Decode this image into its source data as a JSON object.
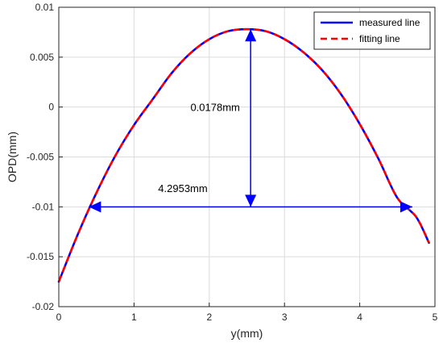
{
  "chart_data": {
    "type": "line",
    "title": "",
    "xlabel": "y(mm)",
    "ylabel": "OPD(mm)",
    "xlim": [
      0,
      5
    ],
    "ylim": [
      -0.02,
      0.01
    ],
    "xticks": [
      0,
      1,
      2,
      3,
      4,
      5
    ],
    "yticks": [
      -0.02,
      -0.015,
      -0.01,
      -0.005,
      0,
      0.005,
      0.01
    ],
    "xtick_labels": [
      "0",
      "1",
      "2",
      "3",
      "4",
      "5"
    ],
    "ytick_labels": [
      "-0.02",
      "-0.015",
      "-0.01",
      "-0.005",
      "0",
      "0.005",
      "0.01"
    ],
    "grid": true,
    "legend_position": "top-right",
    "series": [
      {
        "name": "measured line",
        "color": "#0000ff",
        "style": "solid",
        "x": [
          0,
          0.25,
          0.5,
          0.75,
          1.0,
          1.25,
          1.5,
          1.75,
          2.0,
          2.25,
          2.5,
          2.75,
          3.0,
          3.25,
          3.5,
          3.75,
          4.0,
          4.25,
          4.5,
          4.75,
          4.92
        ],
        "y": [
          -0.0175,
          -0.0128,
          -0.0086,
          -0.0049,
          -0.0018,
          0.0008,
          0.0034,
          0.0054,
          0.0068,
          0.0076,
          0.0078,
          0.0076,
          0.0068,
          0.0055,
          0.0037,
          0.0013,
          -0.0017,
          -0.0052,
          -0.0091,
          -0.011,
          -0.0136
        ]
      },
      {
        "name": "fitting line",
        "color": "#ff0000",
        "style": "dashed",
        "x": [
          0,
          0.25,
          0.5,
          0.75,
          1.0,
          1.25,
          1.5,
          1.75,
          2.0,
          2.25,
          2.5,
          2.75,
          3.0,
          3.25,
          3.5,
          3.75,
          4.0,
          4.25,
          4.5,
          4.75,
          4.92
        ],
        "y": [
          -0.0175,
          -0.0128,
          -0.0086,
          -0.0049,
          -0.0018,
          0.0008,
          0.0034,
          0.0054,
          0.0068,
          0.0076,
          0.0078,
          0.0076,
          0.0068,
          0.0055,
          0.0037,
          0.0013,
          -0.0017,
          -0.0052,
          -0.0091,
          -0.011,
          -0.0136
        ]
      }
    ],
    "annotations": [
      {
        "label": "0.0178mm",
        "kind": "vertical-double-arrow",
        "x": 2.55,
        "y_from": -0.01,
        "y_to": 0.0078,
        "label_at": [
          1.75,
          0
        ]
      },
      {
        "label": "4.2953mm",
        "kind": "horizontal-double-arrow",
        "y": -0.01,
        "x_from": 0.4,
        "x_to": 4.7,
        "label_at": [
          1.32,
          -0.0081
        ]
      }
    ]
  }
}
